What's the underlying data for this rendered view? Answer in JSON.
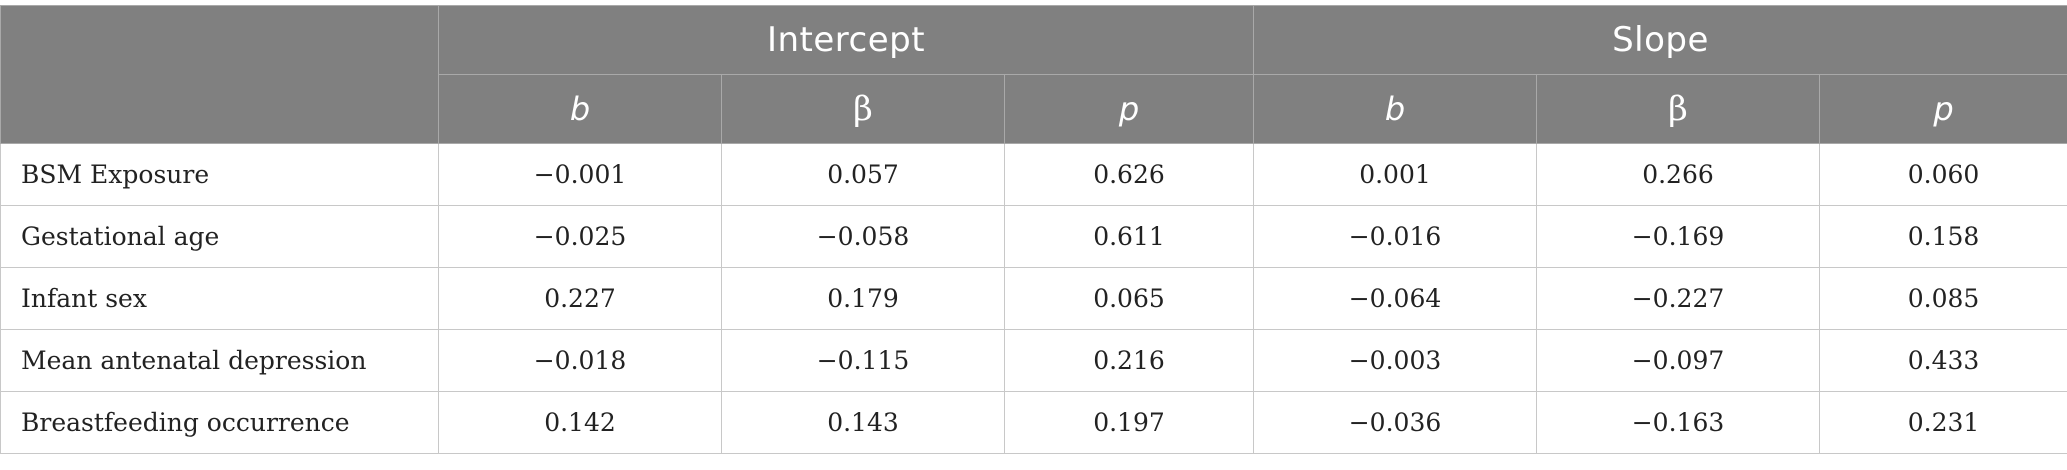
{
  "table": {
    "groups": [
      {
        "label": "Intercept"
      },
      {
        "label": "Slope"
      }
    ],
    "subheaders": [
      "b",
      "β",
      "p",
      "b",
      "β",
      "p"
    ],
    "rows": [
      {
        "label": "BSM Exposure",
        "values": [
          "−0.001",
          "0.057",
          "0.626",
          "0.001",
          "0.266",
          "0.060"
        ]
      },
      {
        "label": "Gestational age",
        "values": [
          "−0.025",
          "−0.058",
          "0.611",
          "−0.016",
          "−0.169",
          "0.158"
        ]
      },
      {
        "label": "Infant sex",
        "values": [
          "0.227",
          "0.179",
          "0.065",
          "−0.064",
          "−0.227",
          "0.085"
        ]
      },
      {
        "label": "Mean antenatal depression",
        "values": [
          "−0.018",
          "−0.115",
          "0.216",
          "−0.003",
          "−0.097",
          "0.433"
        ]
      },
      {
        "label": "Breastfeeding occurrence",
        "values": [
          "0.142",
          "0.143",
          "0.197",
          "−0.036",
          "−0.163",
          "0.231"
        ]
      }
    ]
  },
  "colors": {
    "header_bg": "#808080",
    "header_text": "#ffffff",
    "body_text": "#222222",
    "grid": "#c8c8c8"
  }
}
